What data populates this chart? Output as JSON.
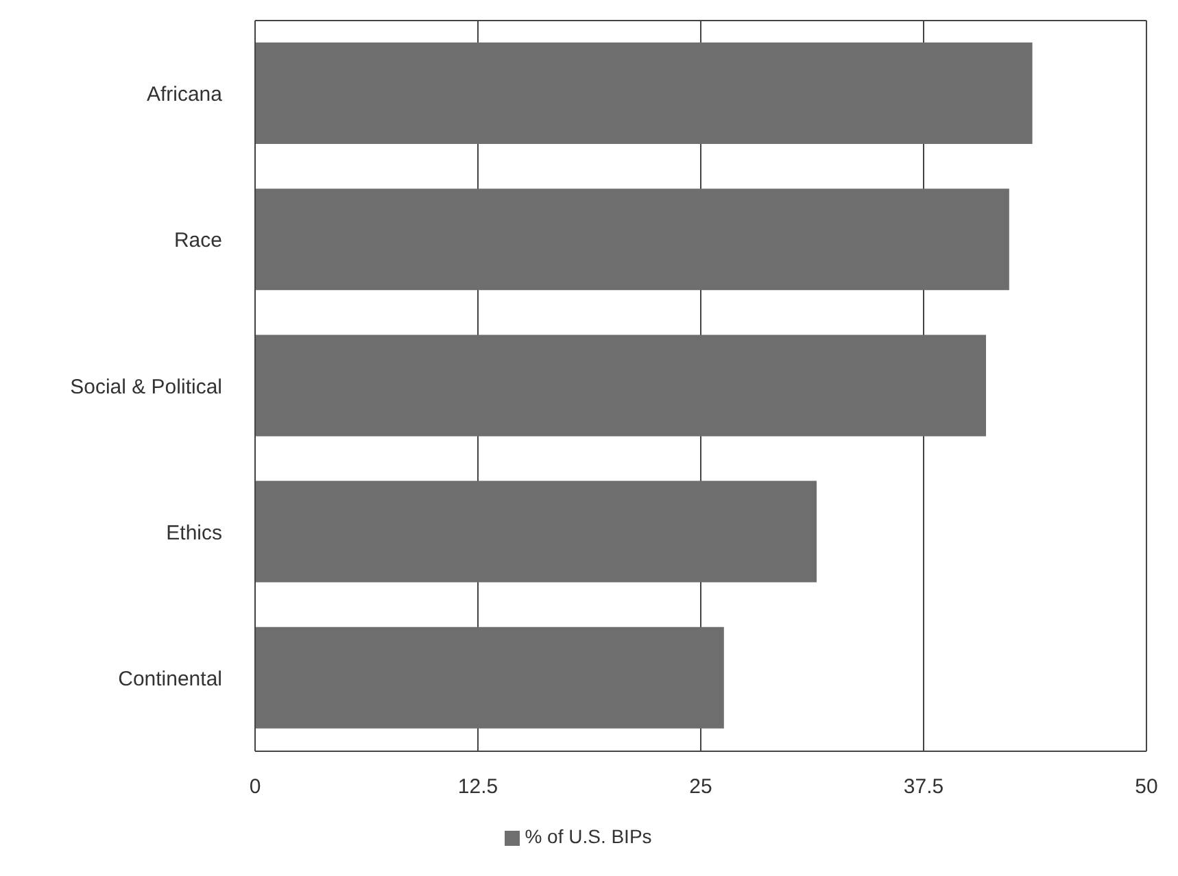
{
  "chart_data": {
    "type": "bar",
    "orientation": "horizontal",
    "categories": [
      "Africana",
      "Race",
      "Social & Political",
      "Ethics",
      "Continental"
    ],
    "series": [
      {
        "name": "% of U.S. BIPs",
        "color": "#6e6e6e",
        "values": [
          43.6,
          42.3,
          41.0,
          31.5,
          26.3
        ]
      }
    ],
    "xlim": [
      0,
      50
    ],
    "xticks": [
      0,
      12.5,
      25,
      37.5,
      50
    ],
    "grid": "x",
    "legend": "bottom"
  }
}
